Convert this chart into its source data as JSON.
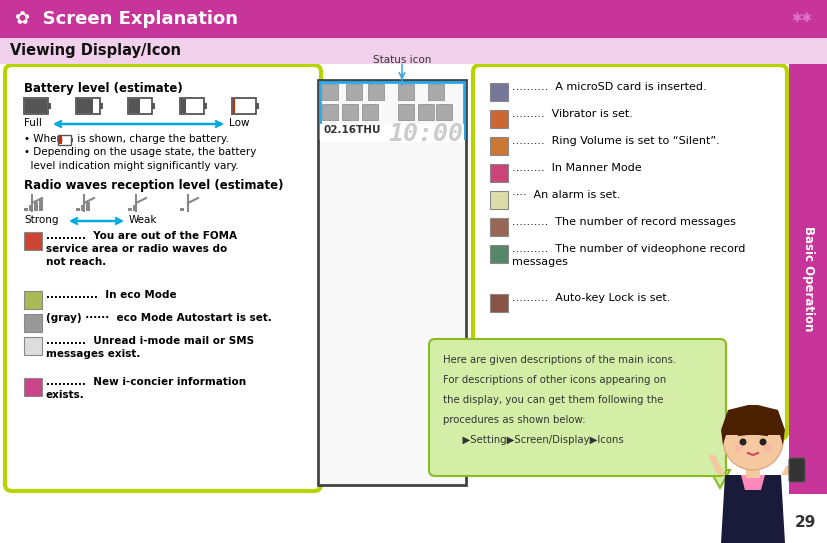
{
  "title": "Screen Explanation",
  "subtitle": "Viewing Display/Icon",
  "title_bg": "#c8359a",
  "subtitle_bg": "#f0d0ea",
  "page_bg": "#ffffff",
  "sidebar_color": "#c8359a",
  "sidebar_text": "Basic Operation",
  "box_border_color": "#b8d400",
  "box_bg": "#ffffff",
  "arrow_color": "#00aadd",
  "status_label": "Status icon",
  "page_number": "29",
  "callout_bg": "#d4eea8",
  "callout_border": "#88bb22",
  "left_header1": "Battery level (estimate)",
  "full_label": "Full",
  "low_label": "Low",
  "bullet1a": "• When",
  "bullet1b": "is shown, charge the battery.",
  "bullet2": "• Depending on the usage state, the battery\n  level indication might significantly vary.",
  "left_header2": "Radio waves reception level (estimate)",
  "strong_label": "Strong",
  "weak_label": "Weak",
  "left_items": [
    {
      "dots": "..........",
      "text": "You are out of the FOMA\nservice area or radio waves do\nnot reach.",
      "bold": true
    },
    {
      "dots": ".............",
      "text": "In eco Mode",
      "bold": true
    },
    {
      "dots": "(gray) ······",
      "text": "eco Mode Autostart is set.",
      "bold": true
    },
    {
      "dots": "..........",
      "text": "Unread i-mode mail or SMS\nmessages exist.",
      "bold": true
    },
    {
      "dots": "..........",
      "text": "New i-concier information\nexists.",
      "bold": true
    }
  ],
  "right_items": [
    {
      "dots": "..........",
      "text": "A microSD card is inserted."
    },
    {
      "dots": ".........",
      "text": "Vibrator is set."
    },
    {
      "dots": ".........",
      "text": "Ring Volume is set to “Silent”."
    },
    {
      "dots": ".........",
      "text": "In Manner Mode"
    },
    {
      "dots": "····",
      "text": "An alarm is set."
    },
    {
      "dots": "..........",
      "text": "The number of record messages"
    },
    {
      "dots": "..........",
      "text": "The number of videophone record\nmessages"
    },
    {
      "dots": "..........",
      "text": "Auto-key Lock is set."
    }
  ],
  "callout_line1": "Here are given descriptions of the main icons.",
  "callout_line2": "For descriptions of other icons appearing on",
  "callout_line3": "the display, you can get them following the",
  "callout_line4": "procedures as shown below:",
  "callout_line5": "      ▶Setting▶Screen/Display▶Icons"
}
